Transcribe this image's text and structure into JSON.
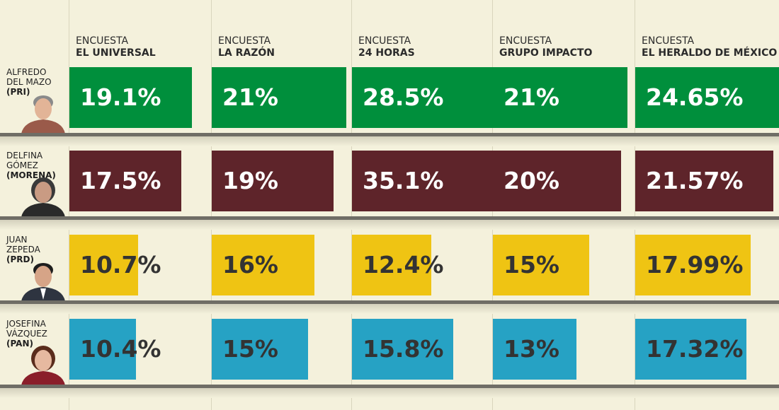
{
  "colors": {
    "background": "#f4f1dc",
    "dark_value_text": "#333333",
    "light_value_text": "#ffffff"
  },
  "chart_data": {
    "type": "bar",
    "orientation": "horizontal",
    "categories": [
      "EL UNIVERSAL",
      "LA RAZÓN",
      "24 HORAS",
      "GRUPO IMPACTO",
      "EL HERALDO DE MÉXICO"
    ],
    "category_prefix": "ENCUESTA",
    "value_suffix": "%",
    "series": [
      {
        "name_lines": [
          "ALFREDO",
          "DEL MAZO"
        ],
        "party": "(PRI)",
        "color": "#008f3c",
        "label_color": "#ffffff",
        "avatar_icon": "man-grey-hair-portrait",
        "values": [
          19.1,
          21,
          28.5,
          21,
          24.65
        ],
        "labels": [
          "19.1%",
          "21%",
          "28.5%",
          "21%",
          "24.65%"
        ]
      },
      {
        "name_lines": [
          "DELFINA",
          "GÓMEZ"
        ],
        "party": "(MORENA)",
        "color": "#5e242a",
        "label_color": "#ffffff",
        "avatar_icon": "woman-short-hair-portrait",
        "values": [
          17.5,
          19,
          35.1,
          20,
          21.57
        ],
        "labels": [
          "17.5%",
          "19%",
          "35.1%",
          "20%",
          "21.57%"
        ]
      },
      {
        "name_lines": [
          "JUAN",
          "ZEPEDA"
        ],
        "party": "(PRD)",
        "color": "#efc413",
        "label_color": "#333333",
        "avatar_icon": "man-suit-portrait",
        "values": [
          10.7,
          16,
          12.4,
          15,
          17.99
        ],
        "labels": [
          "10.7%",
          "16%",
          "12.4%",
          "15%",
          "17.99%"
        ]
      },
      {
        "name_lines": [
          "JOSEFINA",
          "VÁZQUEZ"
        ],
        "party": "(PAN)",
        "color": "#26a2c4",
        "label_color": "#333333",
        "avatar_icon": "woman-portrait",
        "values": [
          10.4,
          15,
          15.8,
          13,
          17.32
        ],
        "labels": [
          "10.4%",
          "15%",
          "15.8%",
          "13%",
          "17.32%"
        ]
      }
    ]
  }
}
